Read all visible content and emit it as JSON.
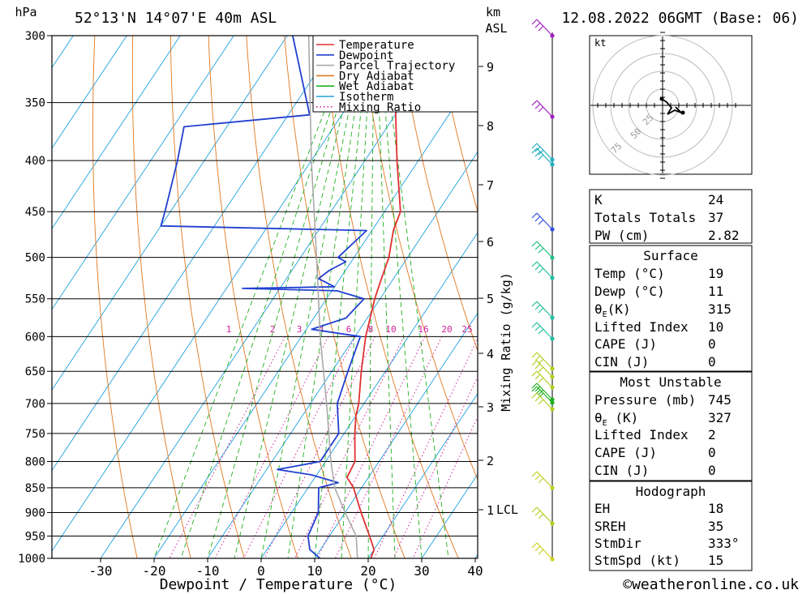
{
  "header": {
    "left_unit": "hPa",
    "location": "52°13'N 14°07'E 40m ASL",
    "km_unit": "km",
    "asl": "ASL",
    "datetime": "12.08.2022 06GMT (Base: 06)"
  },
  "chart_data": {
    "type": "skew-t",
    "xlabel": "Dewpoint / Temperature (°C)",
    "ylabel_right": "Mixing Ratio (g/kg)",
    "pressure_levels": [
      300,
      350,
      400,
      450,
      500,
      550,
      600,
      650,
      700,
      750,
      800,
      850,
      900,
      950,
      1000
    ],
    "temperature_ticks": [
      -30,
      -20,
      -10,
      0,
      10,
      20,
      30,
      40
    ],
    "km_ticks": [
      "9",
      "8",
      "7",
      "6",
      "5",
      "4",
      "3",
      "2",
      "1"
    ],
    "lcl_label": "LCL",
    "mixing_ratio_labels": [
      "1",
      "2",
      "3",
      "4",
      "6",
      "8",
      "10",
      "16",
      "20",
      "25"
    ],
    "legend": [
      "Temperature",
      "Dewpoint",
      "Parcel Trajectory",
      "Dry Adiabat",
      "Wet Adiabat",
      "Isotherm",
      "Mixing Ratio"
    ],
    "series": [
      {
        "name": "Temperature",
        "color": "#e03030",
        "points": [
          [
            1000,
            20.5
          ],
          [
            980,
            20
          ],
          [
            950,
            17.5
          ],
          [
            900,
            13
          ],
          [
            850,
            8.5
          ],
          [
            830,
            6
          ],
          [
            800,
            5.5
          ],
          [
            750,
            2
          ],
          [
            720,
            0
          ],
          [
            700,
            -1
          ],
          [
            650,
            -4.5
          ],
          [
            600,
            -8
          ],
          [
            550,
            -11
          ],
          [
            530,
            -12
          ],
          [
            500,
            -13.5
          ],
          [
            470,
            -16
          ],
          [
            450,
            -17
          ],
          [
            400,
            -24
          ],
          [
            350,
            -31.5
          ],
          [
            300,
            -38.5
          ]
        ]
      },
      {
        "name": "Dewpoint",
        "color": "#2040d0",
        "points": [
          [
            1000,
            11
          ],
          [
            980,
            8
          ],
          [
            950,
            6
          ],
          [
            900,
            5
          ],
          [
            850,
            2
          ],
          [
            840,
            5
          ],
          [
            825,
            -1
          ],
          [
            815,
            -8
          ],
          [
            800,
            -1
          ],
          [
            750,
            -1
          ],
          [
            700,
            -5
          ],
          [
            650,
            -7
          ],
          [
            600,
            -9
          ],
          [
            590,
            -19
          ],
          [
            575,
            -14
          ],
          [
            550,
            -13
          ],
          [
            540,
            -19
          ],
          [
            537,
            -37
          ],
          [
            535,
            -20
          ],
          [
            525,
            -24
          ],
          [
            515,
            -23
          ],
          [
            505,
            -21
          ],
          [
            500,
            -23
          ],
          [
            470,
            -21
          ],
          [
            465,
            -60
          ],
          [
            450,
            -61
          ],
          [
            400,
            -65
          ],
          [
            370,
            -68
          ],
          [
            360,
            -46
          ],
          [
            300,
            -59
          ]
        ]
      },
      {
        "name": "Parcel Trajectory",
        "color": "#aaaaaa",
        "points": [
          [
            1000,
            18
          ],
          [
            950,
            15
          ],
          [
            900,
            10
          ],
          [
            850,
            5
          ],
          [
            800,
            1
          ],
          [
            700,
            -7
          ],
          [
            600,
            -16.5
          ],
          [
            500,
            -27
          ],
          [
            400,
            -40
          ],
          [
            300,
            -56
          ]
        ]
      }
    ]
  },
  "hodograph": {
    "unit": "kt",
    "rings": [
      "25",
      "50",
      "75"
    ]
  },
  "stats": {
    "k_label": "K",
    "k_value": "24",
    "tt_label": "Totals Totals",
    "tt_value": "37",
    "pw_label": "PW (cm)",
    "pw_value": "2.82",
    "surface_title": "Surface",
    "temp_label": "Temp (°C)",
    "temp_value": "19",
    "dewp_label": "Dewp (°C)",
    "dewp_value": "11",
    "thetae_sym": "θ",
    "thetae_sub": "E",
    "thetae_unit": "(K)",
    "thetae_value": "315",
    "li_label": "Lifted Index",
    "li_value": "10",
    "cape_label": "CAPE (J)",
    "cape_value": "0",
    "cin_label": "CIN (J)",
    "cin_value": "0",
    "mu_title": "Most Unstable",
    "mu_pressure_label": "Pressure (mb)",
    "mu_pressure_value": "745",
    "mu_thetae_unit": "(K)",
    "mu_thetae_value": "327",
    "mu_li_label": "Lifted Index",
    "mu_li_value": "2",
    "mu_cape_label": "CAPE (J)",
    "mu_cape_value": "0",
    "mu_cin_label": "CIN (J)",
    "mu_cin_value": "0",
    "hodo_title": "Hodograph",
    "eh_label": "EH",
    "eh_value": "18",
    "sreh_label": "SREH",
    "sreh_value": "35",
    "stmdir_label": "StmDir",
    "stmdir_value": "333°",
    "stmspd_label": "StmSpd (kt)",
    "stmspd_value": "15"
  },
  "footer": {
    "copyright": "©weatheronline.co.uk"
  },
  "colors": {
    "temperature": "#e03030",
    "dewpoint": "#2040d0",
    "parcel": "#aaaaaa",
    "dry_adiabat": "#e07820",
    "wet_adiabat": "#20b020",
    "isotherm": "#20a0e0",
    "mixing_ratio": "#d0209a"
  }
}
